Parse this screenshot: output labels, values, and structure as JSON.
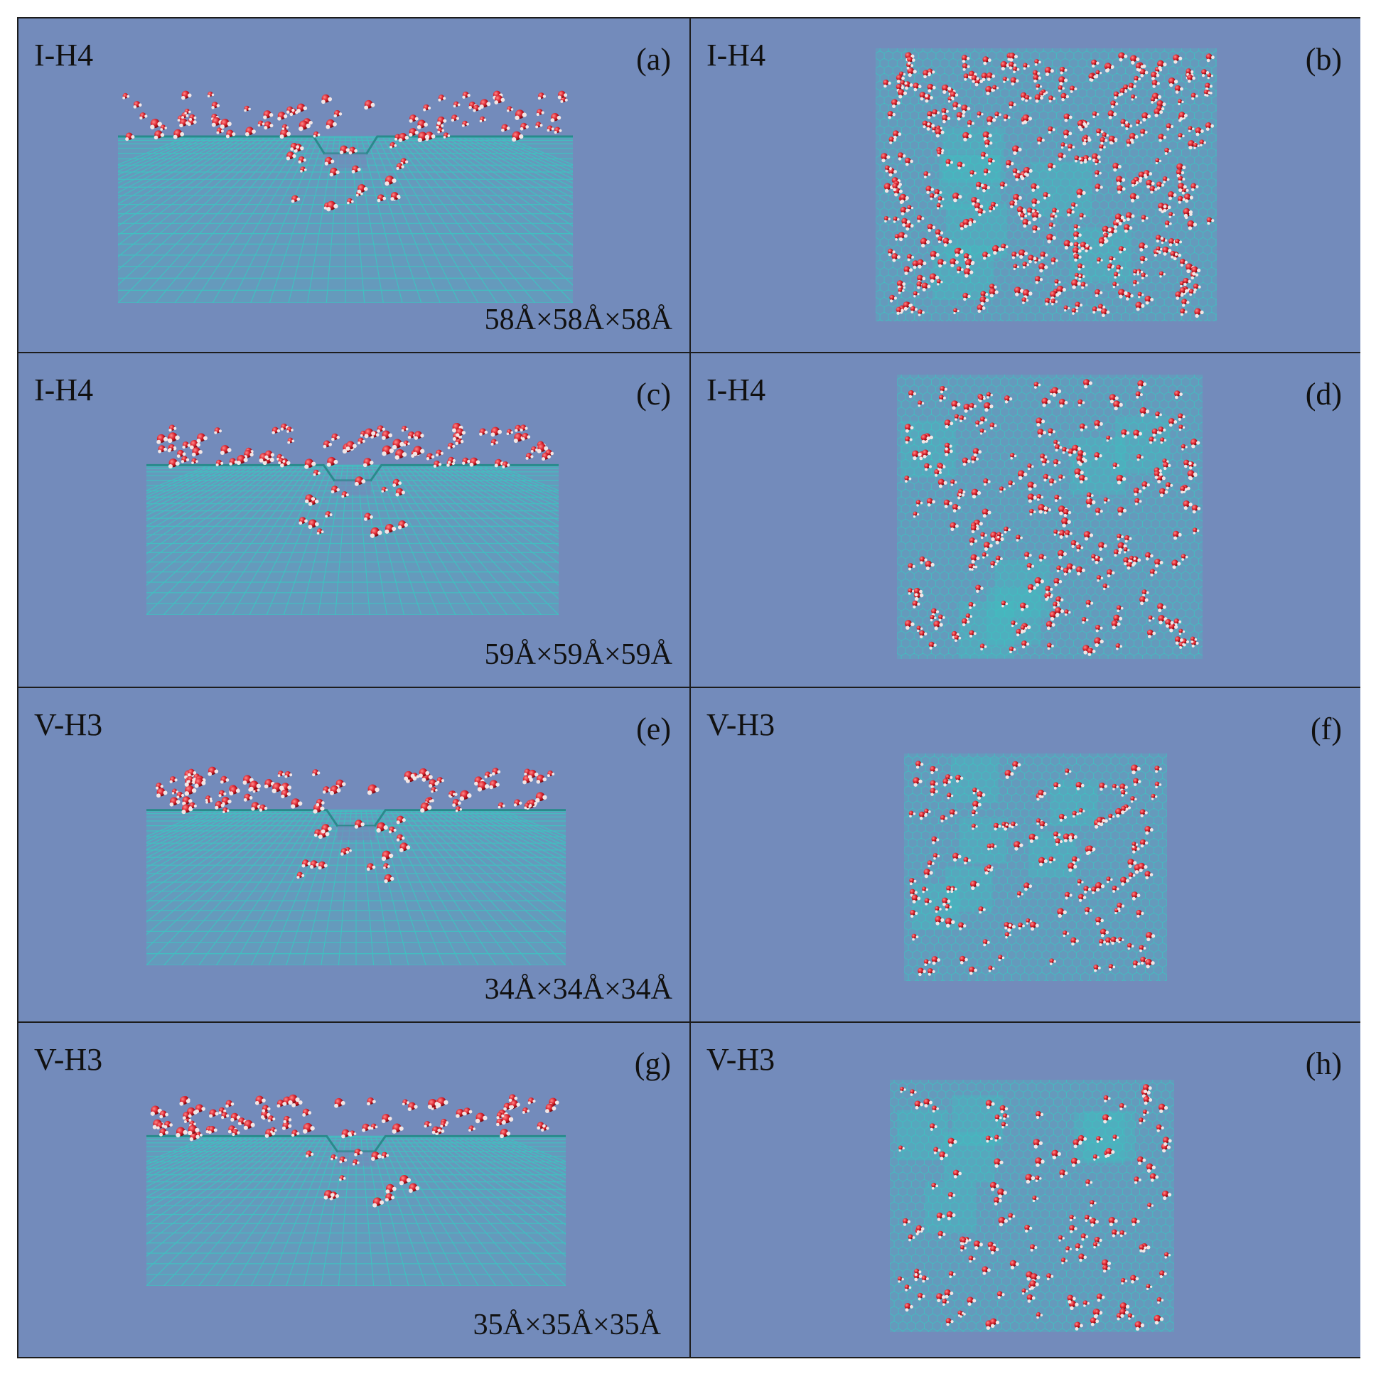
{
  "panels": [
    {
      "id": "a",
      "label": "I-H4",
      "letter": "(a)",
      "dims": "58Å×58Å×58Å",
      "view": "side"
    },
    {
      "id": "b",
      "label": "I-H4",
      "letter": "(b)",
      "dims": "",
      "view": "top"
    },
    {
      "id": "c",
      "label": "I-H4",
      "letter": "(c)",
      "dims": "59Å×59Å×59Å",
      "view": "side"
    },
    {
      "id": "d",
      "label": "I-H4",
      "letter": "(d)",
      "dims": "",
      "view": "top"
    },
    {
      "id": "e",
      "label": "V-H3",
      "letter": "(e)",
      "dims": "",
      "view": "side"
    },
    {
      "id": "f",
      "label": "V-H3",
      "letter": "(f)",
      "dims": "34Å×34Å×34Å",
      "view": "top"
    },
    {
      "id": "g",
      "label": "V-H3",
      "letter": "(g)",
      "dims": "35Å×35Å×35Å",
      "view": "side"
    },
    {
      "id": "h",
      "label": "V-H3",
      "letter": "(h)",
      "dims": "",
      "view": "top"
    }
  ],
  "colors": {
    "background": "#738bbb",
    "lattice": "#3fc1c0",
    "oxygen": "#d81e2a",
    "hydrogen": "#f2e6e6",
    "border": "#1c1c1c"
  }
}
